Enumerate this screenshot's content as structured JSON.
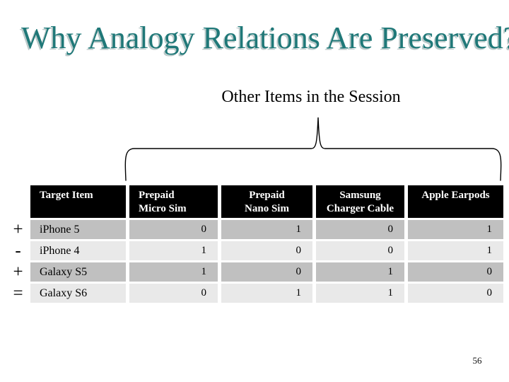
{
  "slide": {
    "title": "Why Analogy Relations Are Preserved?",
    "subtitle": "Other Items in the Session",
    "page_number": "56",
    "colors": {
      "title": "#1f7878",
      "title_shadow": "#bccaca",
      "header_bg": "#000000",
      "header_text": "#ffffff",
      "row_dark": "#c0c0c0",
      "row_light": "#e9e9e9"
    }
  },
  "chart_data": {
    "type": "table",
    "title": "Other Items in the Session",
    "columns": [
      "Target Item",
      "Prepaid\nMicro Sim",
      "Prepaid\nNano Sim",
      "Samsung\nCharger Cable",
      "Apple Earpods"
    ],
    "row_symbols": [
      "+",
      "-",
      "+",
      "="
    ],
    "rows": [
      {
        "symbol": "+",
        "item": "iPhone 5",
        "values": [
          0,
          1,
          0,
          1
        ]
      },
      {
        "symbol": "-",
        "item": "iPhone 4",
        "values": [
          1,
          0,
          0,
          1
        ]
      },
      {
        "symbol": "+",
        "item": "Galaxy S5",
        "values": [
          1,
          0,
          1,
          0
        ]
      },
      {
        "symbol": "=",
        "item": "Galaxy S6",
        "values": [
          0,
          1,
          1,
          0
        ]
      }
    ]
  }
}
